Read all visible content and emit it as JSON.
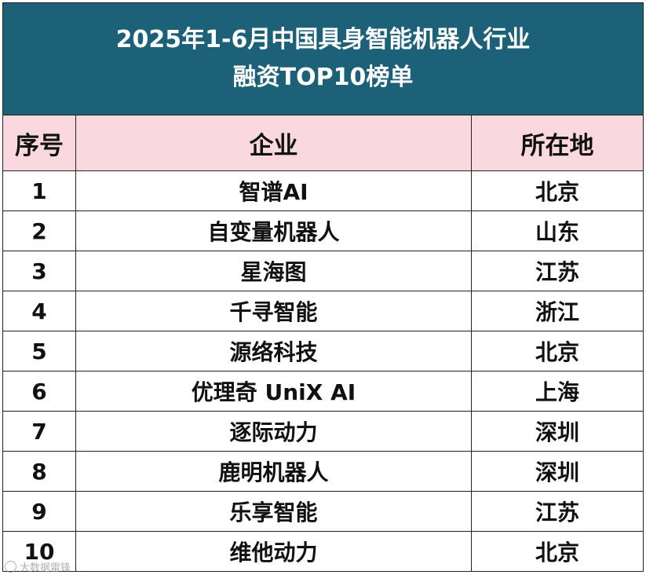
{
  "title": {
    "line1": "2025年1-6月中国具身智能机器人行业",
    "line2": "融资TOP10榜单"
  },
  "headers": {
    "rank": "序号",
    "company": "企业",
    "location": "所在地"
  },
  "rows": [
    {
      "rank": "1",
      "company": "智谱AI",
      "location": "北京"
    },
    {
      "rank": "2",
      "company": "自变量机器人",
      "location": "山东"
    },
    {
      "rank": "3",
      "company": "星海图",
      "location": "江苏"
    },
    {
      "rank": "4",
      "company": "千寻智能",
      "location": "浙江"
    },
    {
      "rank": "5",
      "company": "源络科技",
      "location": "北京"
    },
    {
      "rank": "6",
      "company": "优理奇 UniX AI",
      "location": "上海"
    },
    {
      "rank": "7",
      "company": "逐际动力",
      "location": "深圳"
    },
    {
      "rank": "8",
      "company": "鹿明机器人",
      "location": "深圳"
    },
    {
      "rank": "9",
      "company": "乐享智能",
      "location": "江苏"
    },
    {
      "rank": "10",
      "company": "维他动力",
      "location": "北京"
    }
  ],
  "watermark": {
    "text": "大数据雷锋"
  },
  "colors": {
    "title_background": "#1d6178",
    "title_text": "#ffffff",
    "header_background": "#f9d9df",
    "border": "#222222"
  }
}
